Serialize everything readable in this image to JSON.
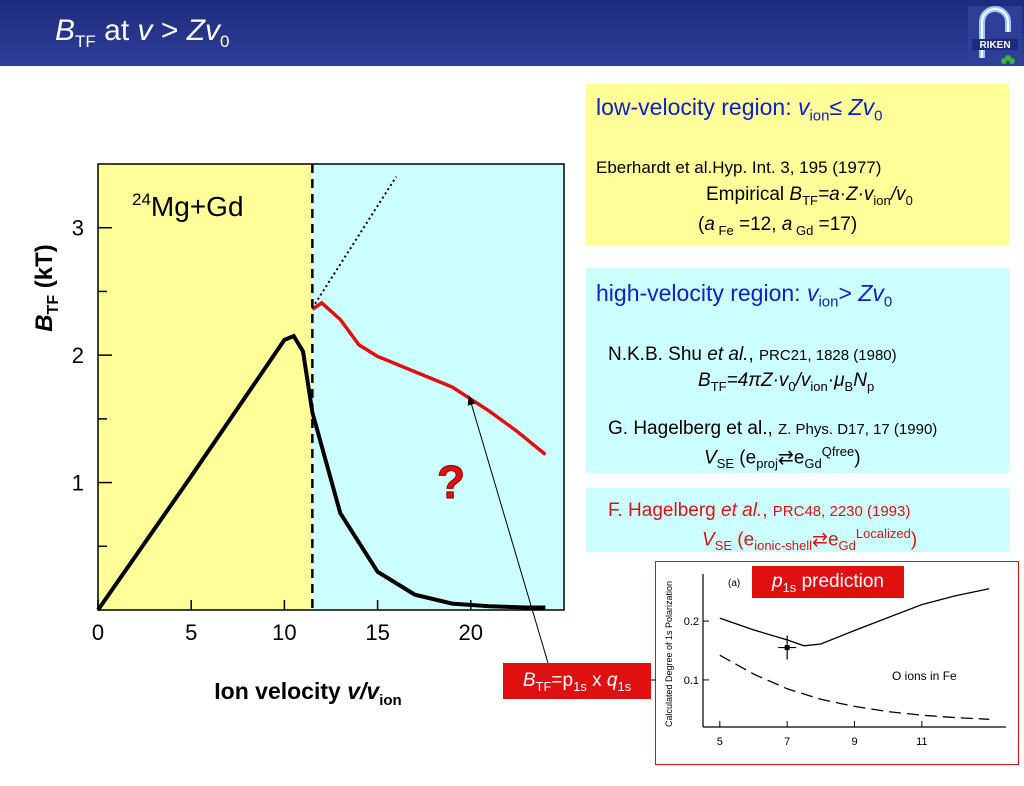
{
  "slide": {
    "title": {
      "B": "B",
      "TF": "TF",
      "at": " at ",
      "v": "v",
      "gt": " > ",
      "Z": "Zv",
      "zero": "0"
    },
    "logo_text": "RIKEN",
    "low_region": {
      "heading": "low-velocity region: ",
      "v": "v",
      "ion": "ion",
      "le": "≤ ",
      "Zv": "Zv",
      "zero": "0",
      "ref": "Eberhardt et al.Hyp. Int. 3, 195 (1977)",
      "empirical_label": "Empirical ",
      "formula_B": "B",
      "formula_TF": "TF",
      "formula_eq": "=a·Z·v",
      "formula_ion": "ion",
      "formula_tail": "/v",
      "formula_zero": "0",
      "params_a1": "a",
      "params_fe": " Fe",
      "params_mid": " =12, ",
      "params_a2": "a",
      "params_gd": " Gd",
      "params_end": " =17)",
      "params_open": "("
    },
    "high_region": {
      "heading": "high-velocity region: ",
      "v": "v",
      "ion": "ion",
      "gt": "> ",
      "Zv": "Zv",
      "zero": "0",
      "shu_name": "N.K.B. Shu ",
      "shu_etal": "et al.",
      "shu_comma": ", ",
      "shu_ref": "PRC21, 1828 (1980)",
      "shu_B": "B",
      "shu_TF": "TF",
      "shu_eq": "=4πZ·v",
      "shu_zero": "0",
      "shu_slash": "/v",
      "shu_ion": "ion",
      "shu_mu": "·μ",
      "shu_muB": "B",
      "shu_N": "N",
      "shu_p": "p",
      "hag_name": "G. Hagelberg et al., ",
      "hag_ref": "Z. Phys. D17, 17 (1990)",
      "hag_V": "V",
      "hag_SE": "SE",
      "hag_open": " (e",
      "hag_proj": "proj",
      "hag_arrow": "⇄e",
      "hag_Gd": "Gd",
      "hag_Qfree": "Qfree",
      "hag_close": ")"
    },
    "hagelberg93": {
      "name": "F. Hagelberg ",
      "etal": "et al.",
      "comma": ", ",
      "ref": "PRC48, 2230 (1993)",
      "V": "V",
      "SE": "SE",
      "open": " (e",
      "shell": "ionic-shell",
      "arrow": "⇄e",
      "Gd": "Gd",
      "localized": "Localized",
      "close": ")"
    },
    "p1s_label": {
      "p": "p",
      "s": "1s",
      "rest": " prediction"
    },
    "btf_label": {
      "B": "B",
      "TF": "TF",
      "eq": "=p",
      "p1s": "1s",
      "x": " x ",
      "q": "q",
      "q1s": "1s"
    },
    "colors": {
      "header": "#1d2b7e",
      "yellow_region": "#ffff99",
      "cyan_region": "#ccffff",
      "highlight_red": "#e01010",
      "heading_blue": "#1020c8"
    }
  },
  "chart_data": [
    {
      "type": "line",
      "title": "",
      "annotation": "24Mg+Gd",
      "question_mark": "?",
      "xlabel": "Ion velocity v/vion",
      "ylabel": "BTF (kT)",
      "xlim": [
        0,
        25
      ],
      "ylim": [
        0,
        3.5
      ],
      "x_ticks": [
        "0",
        "5",
        "10",
        "15",
        "20"
      ],
      "y_ticks": [
        "1",
        "2",
        "3"
      ],
      "boundary_x": 11.5,
      "region_colors": {
        "left": "#ffff99",
        "right": "#ccffff"
      },
      "series": [
        {
          "style": "black",
          "x": [
            0,
            5,
            10,
            10.5,
            11,
            11.5,
            13,
            15,
            17,
            19,
            21,
            23,
            24
          ],
          "y": [
            0,
            1.05,
            2.12,
            2.15,
            2.03,
            1.55,
            0.76,
            0.3,
            0.12,
            0.05,
            0.03,
            0.02,
            0.02
          ]
        },
        {
          "style": "red",
          "x": [
            11.5,
            12,
            13,
            14,
            15,
            17,
            19,
            21,
            22.5,
            24
          ],
          "y": [
            2.36,
            2.41,
            2.28,
            2.08,
            1.99,
            1.87,
            1.75,
            1.56,
            1.4,
            1.22
          ]
        },
        {
          "style": "dotted",
          "x": [
            11.5,
            16
          ],
          "y": [
            2.37,
            3.4
          ]
        }
      ]
    },
    {
      "type": "line",
      "xlabel": "",
      "ylabel": "Calculated Degree of 1s Polarization",
      "panel_label": "(a)",
      "annotation": "O ions in Fe",
      "x_ticks": [
        "5",
        "7",
        "9",
        "11"
      ],
      "y_ticks": [
        "0.1",
        "0.2"
      ],
      "xlim": [
        4.5,
        13.5
      ],
      "ylim": [
        0.02,
        0.28
      ],
      "series": [
        {
          "style": "solid",
          "x": [
            5,
            6,
            7,
            7.5,
            8,
            9,
            10,
            11,
            12,
            13
          ],
          "y": [
            0.205,
            0.185,
            0.168,
            0.158,
            0.161,
            0.184,
            0.206,
            0.228,
            0.243,
            0.255
          ]
        },
        {
          "style": "dashed",
          "x": [
            5,
            6,
            7,
            8,
            9,
            10,
            11,
            12,
            13
          ],
          "y": [
            0.142,
            0.11,
            0.085,
            0.067,
            0.055,
            0.046,
            0.04,
            0.036,
            0.033
          ]
        }
      ],
      "points": [
        {
          "x": 7,
          "y": 0.155
        }
      ]
    }
  ]
}
